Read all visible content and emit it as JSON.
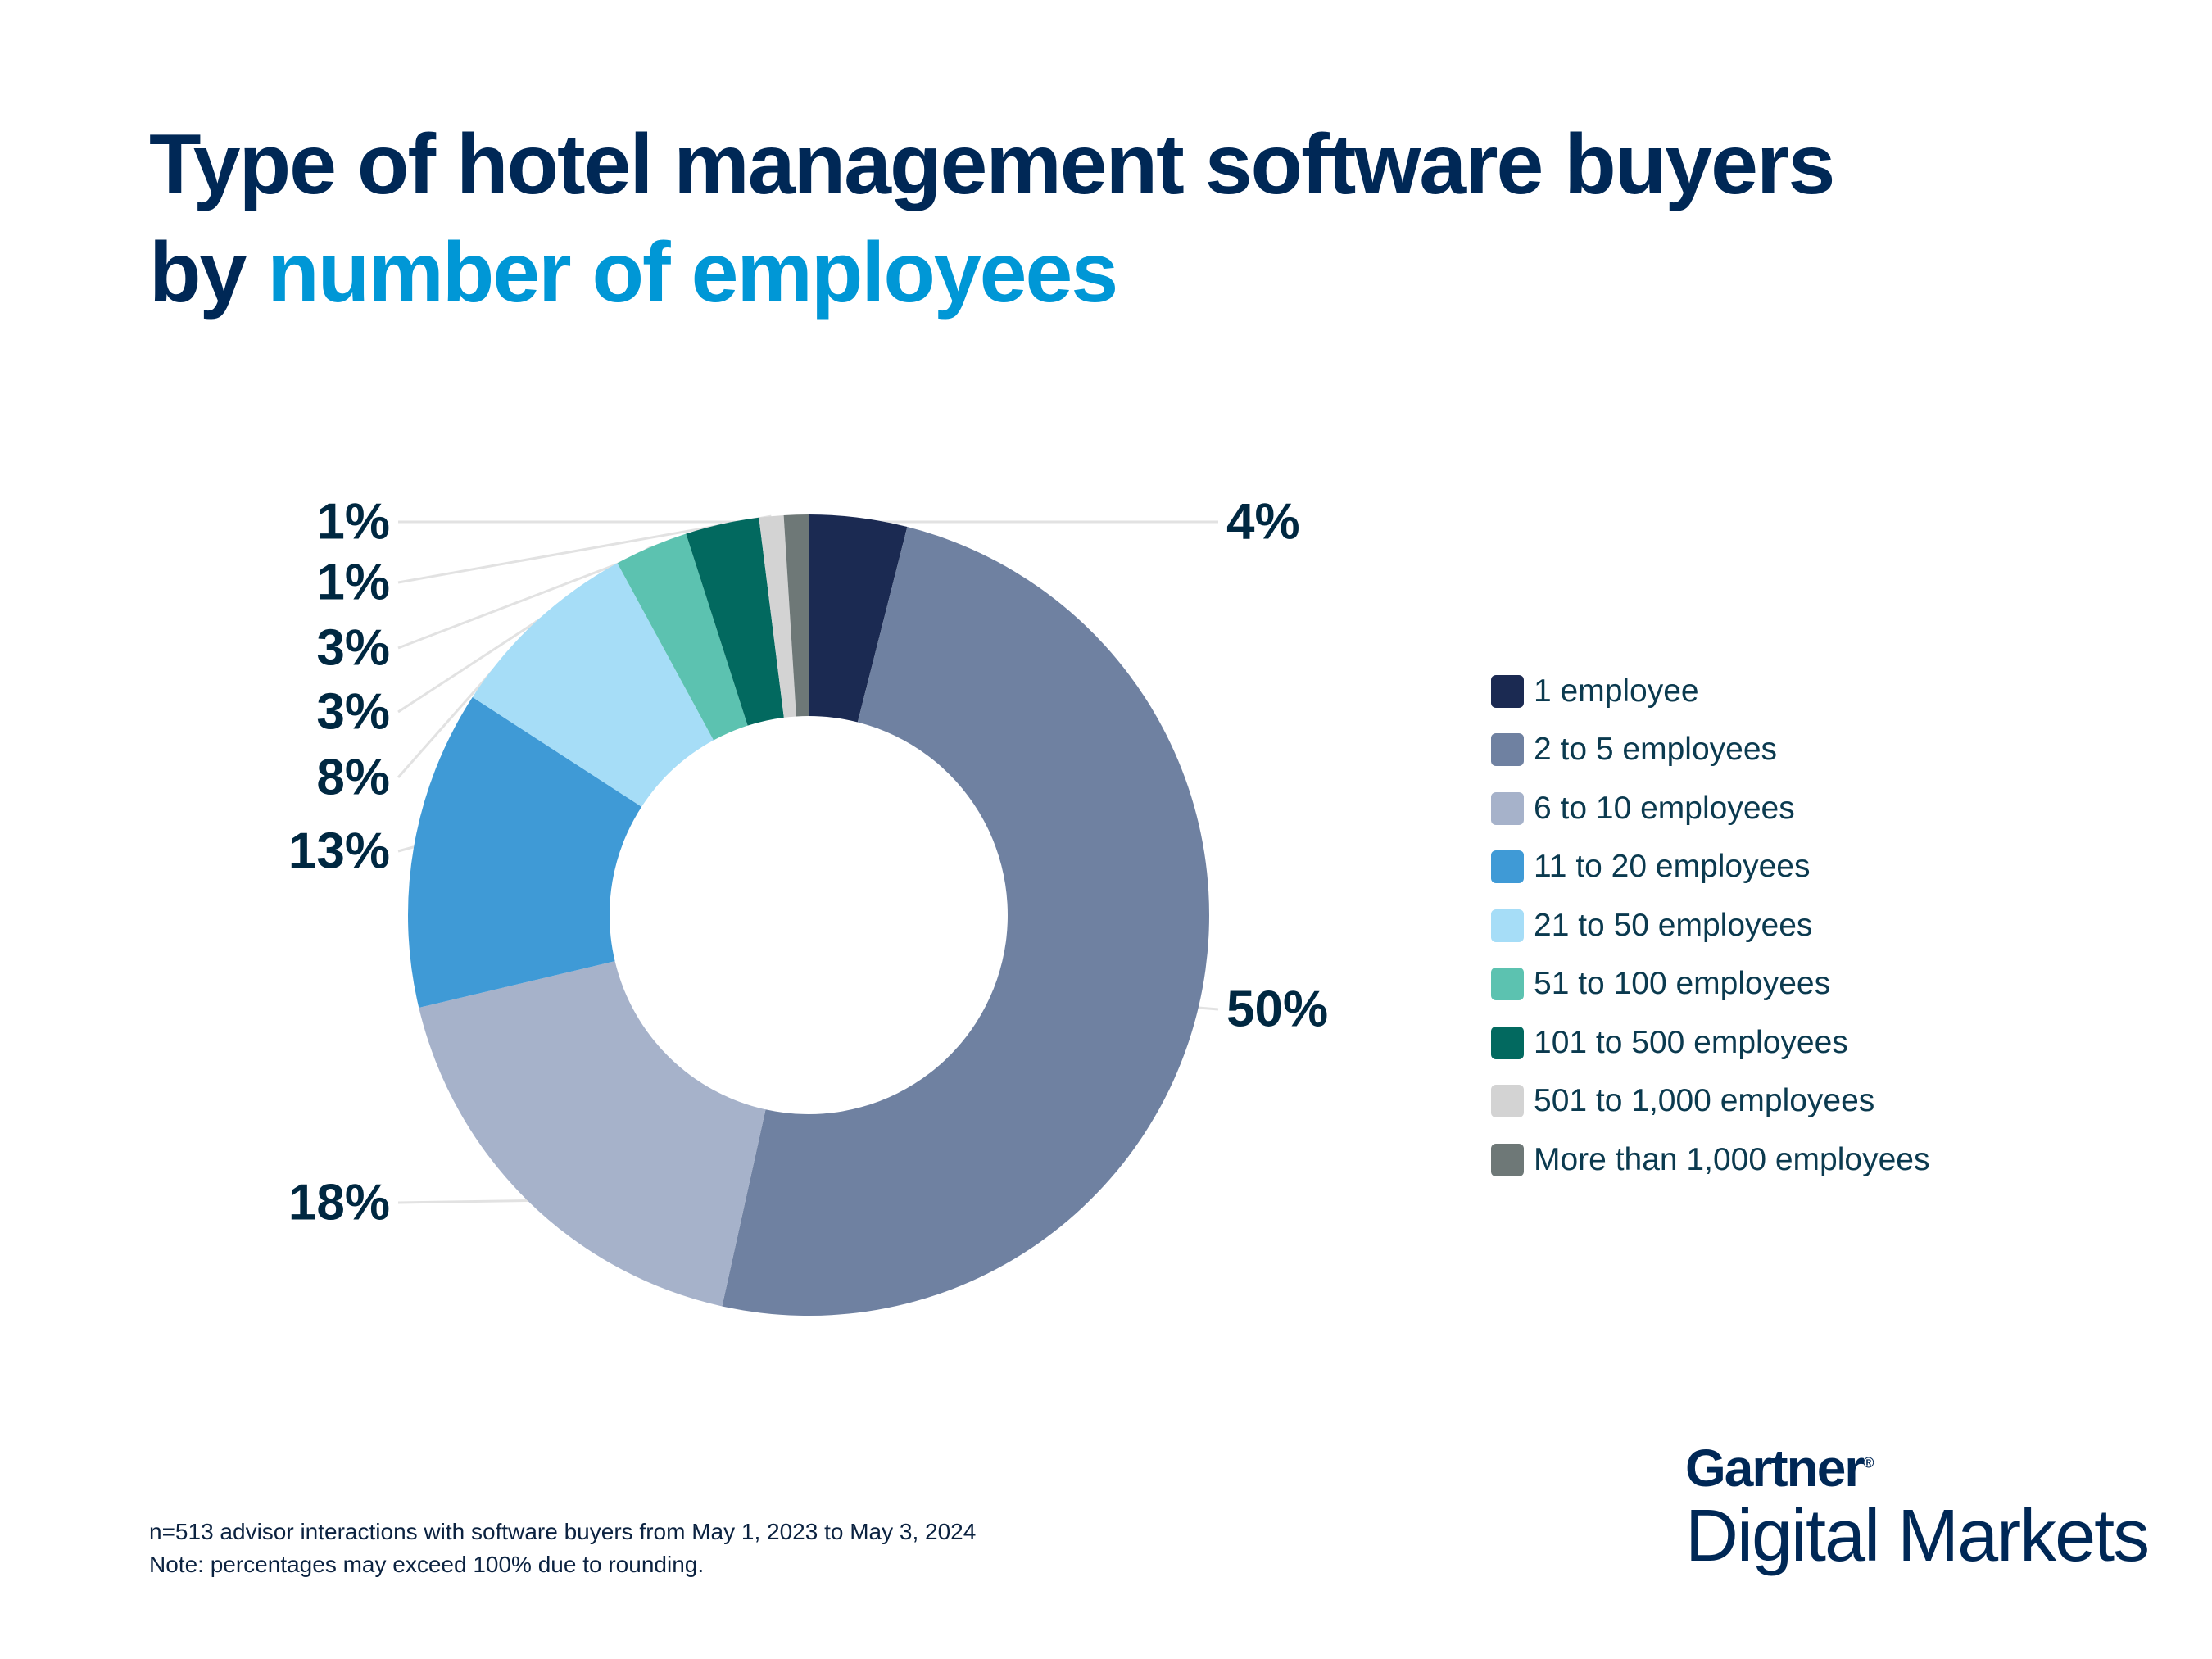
{
  "title": {
    "line1": "Type of hotel management software buyers",
    "line2_prefix": "by ",
    "line2_accent": "number of employees"
  },
  "colors": {
    "title": "#002856",
    "accent": "#0097d6"
  },
  "chart_data": {
    "type": "pie",
    "donut": true,
    "start": "top, clockwise",
    "categories": [
      "1 employee",
      "2 to 5 employees",
      "6 to 10 employees",
      "11 to 20 employees",
      "21 to 50 employees",
      "51 to 100 employees",
      "101 to 500 employees",
      "501 to 1,000 employees",
      "More than 1,000 employees"
    ],
    "values": [
      4,
      50,
      18,
      13,
      8,
      3,
      3,
      1,
      1
    ],
    "data_labels": [
      "4%",
      "50%",
      "18%",
      "13%",
      "8%",
      "3%",
      "3%",
      "1%",
      "1%"
    ],
    "colors": [
      "#1b2a52",
      "#6f81a1",
      "#a6b2ca",
      "#3f9ad6",
      "#a6ddf7",
      "#5cc2b0",
      "#02695f",
      "#d3d3d3",
      "#6e7877"
    ],
    "legend_position": "right"
  },
  "footer": {
    "line1": "n=513 advisor interactions with software buyers from May 1, 2023 to May 3, 2024",
    "line2": "Note: percentages may exceed 100% due to rounding."
  },
  "logo": {
    "brand": "Gartner",
    "registered": "®",
    "product": "Digital Markets"
  }
}
